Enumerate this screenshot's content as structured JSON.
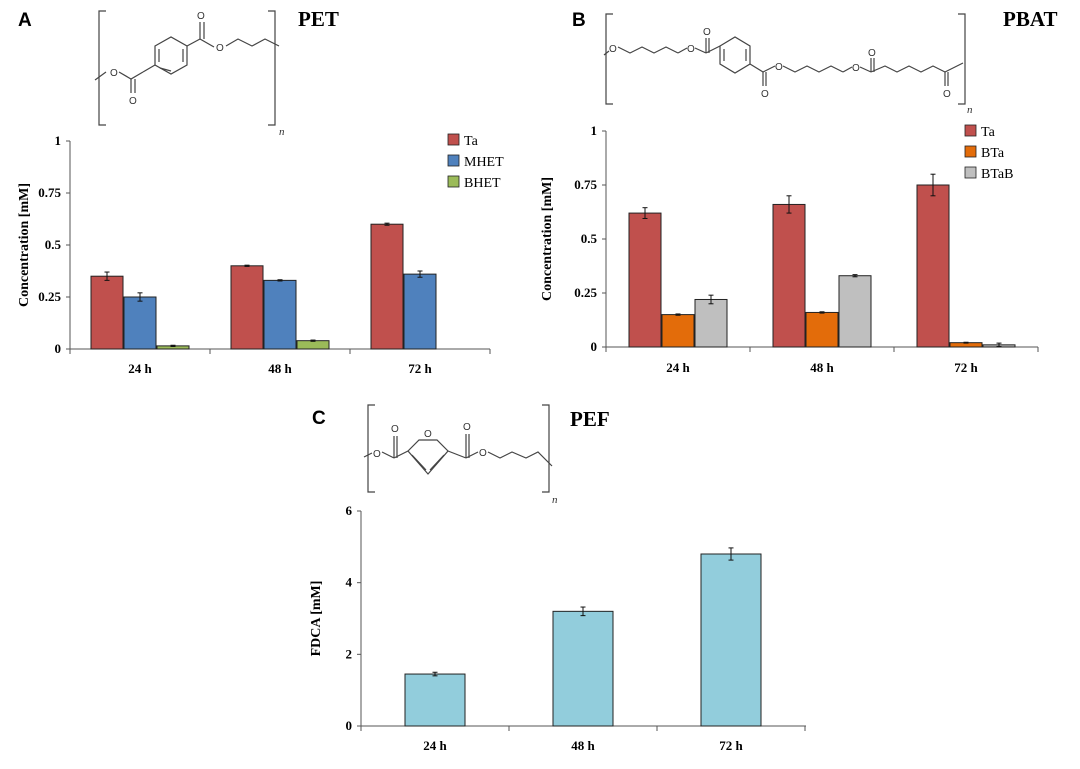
{
  "panels": {
    "A": {
      "letter": "A",
      "polymer": "PET"
    },
    "B": {
      "letter": "B",
      "polymer": "PBAT"
    },
    "C": {
      "letter": "C",
      "polymer": "PEF"
    }
  },
  "structure_labels": {
    "O": "O",
    "n": "n"
  },
  "colors": {
    "Ta": "#C0504D",
    "MHET": "#4F81BD",
    "BHET": "#9BBB59",
    "BTa": "#E36C0A",
    "BTaB": "#BFBFBF",
    "FDCA": "#92CDDC"
  },
  "chart_data": [
    {
      "id": "A",
      "type": "bar",
      "categories": [
        "24 h",
        "48 h",
        "72 h"
      ],
      "ylabel": "Concentration [mM]",
      "ylim": [
        0,
        1
      ],
      "yticks": [
        "0",
        "0.25",
        "0.5",
        "0.75",
        "1"
      ],
      "legend_position": "top-right",
      "series": [
        {
          "name": "Ta",
          "values": [
            0.35,
            0.4,
            0.6
          ],
          "errors": [
            0.02,
            0.003,
            0.005
          ]
        },
        {
          "name": "MHET",
          "values": [
            0.25,
            0.33,
            0.36
          ],
          "errors": [
            0.02,
            0.003,
            0.015
          ]
        },
        {
          "name": "BHET",
          "values": [
            0.015,
            0.04,
            0
          ],
          "errors": [
            0.003,
            0.003,
            0
          ]
        }
      ]
    },
    {
      "id": "B",
      "type": "bar",
      "categories": [
        "24 h",
        "48 h",
        "72 h"
      ],
      "ylabel": "Concentration [mM]",
      "ylim": [
        0,
        1
      ],
      "yticks": [
        "0",
        "0.25",
        "0.5",
        "0.75",
        "1"
      ],
      "legend_position": "top-right",
      "series": [
        {
          "name": "Ta",
          "values": [
            0.62,
            0.66,
            0.75
          ],
          "errors": [
            0.025,
            0.04,
            0.05
          ]
        },
        {
          "name": "BTa",
          "values": [
            0.15,
            0.16,
            0.02
          ],
          "errors": [
            0.003,
            0.003,
            0.002
          ]
        },
        {
          "name": "BTaB",
          "values": [
            0.22,
            0.33,
            0.01
          ],
          "errors": [
            0.02,
            0.005,
            0.008
          ]
        }
      ]
    },
    {
      "id": "C",
      "type": "bar",
      "categories": [
        "24 h",
        "48 h",
        "72 h"
      ],
      "ylabel": "FDCA [mM]",
      "ylim": [
        0,
        6
      ],
      "yticks": [
        "0",
        "2",
        "4",
        "6"
      ],
      "series": [
        {
          "name": "FDCA",
          "values": [
            1.45,
            3.2,
            4.8
          ],
          "errors": [
            0.05,
            0.12,
            0.17
          ]
        }
      ]
    }
  ]
}
